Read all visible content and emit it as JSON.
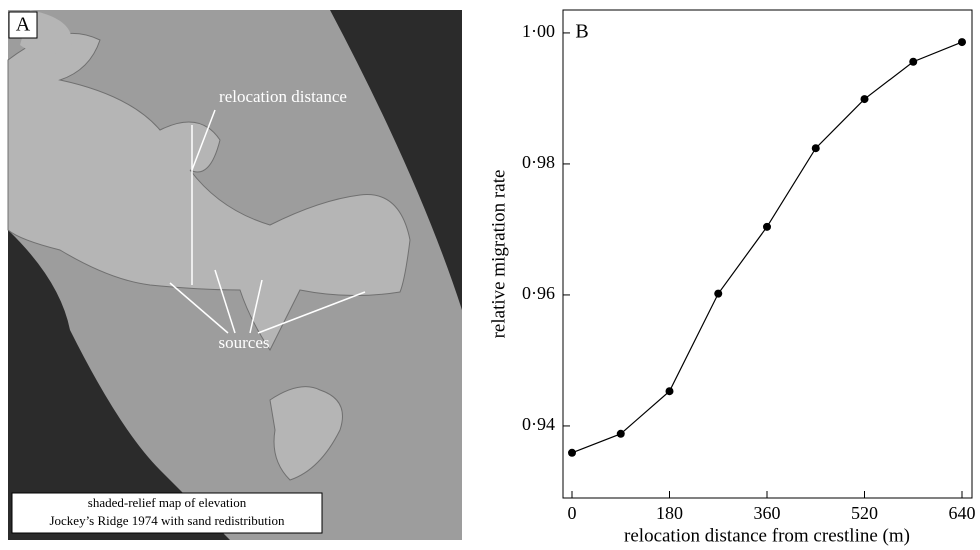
{
  "figure_a": {
    "panel_label": "A",
    "annotations": [
      "relocation distance",
      "sources"
    ],
    "caption": [
      "shaded-relief map of elevation",
      "Jockey’s Ridge 1974 with sand redistribution"
    ]
  },
  "chart_data": {
    "type": "line",
    "panel_label": "B",
    "ylabel": "relative migration rate",
    "xlabel": "relocation distance from crestline (m)",
    "categories": [
      "0",
      null,
      "180",
      null,
      "360",
      null,
      "520",
      null,
      "640"
    ],
    "values": [
      0.9359,
      0.9388,
      0.9453,
      0.9602,
      0.9704,
      0.9824,
      0.9899,
      0.9956,
      0.9986
    ],
    "color": "#000000",
    "ylim": [
      0.929,
      1.0035
    ],
    "yticks": [
      {
        "value": 0.94,
        "label": "0·94"
      },
      {
        "value": 0.96,
        "label": "0·96"
      },
      {
        "value": 0.98,
        "label": "0·98"
      },
      {
        "value": 1.0,
        "label": "1·00"
      }
    ]
  }
}
